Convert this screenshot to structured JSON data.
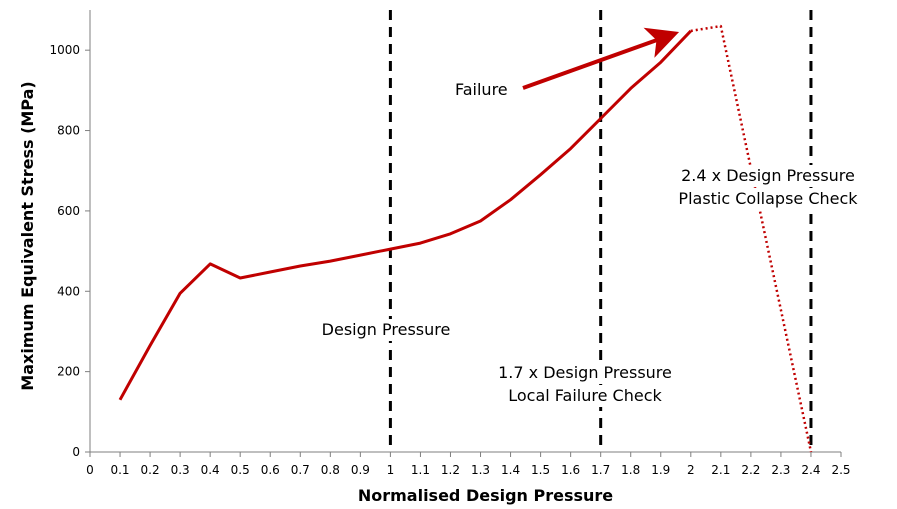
{
  "chart_data": {
    "type": "line",
    "xlabel": "Normalised Design Pressure",
    "ylabel": "Maximum Equivalent Stress (MPa)",
    "xlim": [
      0,
      2.5
    ],
    "ylim": [
      0,
      1100
    ],
    "x_ticks": [
      "0",
      "0.1",
      "0.2",
      "0.3",
      "0.4",
      "0.5",
      "0.6",
      "0.7",
      "0.8",
      "0.9",
      "1",
      "1.1",
      "1.2",
      "1.3",
      "1.4",
      "1.5",
      "1.6",
      "1.7",
      "1.8",
      "1.9",
      "2",
      "2.1",
      "2.2",
      "2.3",
      "2.4",
      "2.5"
    ],
    "y_ticks": [
      "0",
      "200",
      "400",
      "600",
      "800",
      "1000"
    ],
    "grid": false,
    "series": [
      {
        "style": "solid",
        "color": "#c00000",
        "x": [
          0.1,
          0.2,
          0.3,
          0.4,
          0.5,
          0.6,
          0.7,
          0.8,
          0.9,
          1.0,
          1.1,
          1.2,
          1.3,
          1.4,
          1.5,
          1.6,
          1.7,
          1.8,
          1.9,
          2.0
        ],
        "y": [
          130,
          265,
          395,
          468,
          433,
          448,
          463,
          475,
          490,
          505,
          520,
          543,
          575,
          628,
          690,
          755,
          830,
          905,
          970,
          1048
        ]
      },
      {
        "style": "dotted",
        "color": "#c00000",
        "x": [
          2.0,
          2.1,
          2.4
        ],
        "y": [
          1048,
          1060,
          0
        ]
      }
    ],
    "vlines": [
      {
        "x": 1.0,
        "label_lines": [
          "Design Pressure"
        ]
      },
      {
        "x": 1.7,
        "label_lines": [
          "1.7 x Design Pressure",
          "Local Failure Check"
        ]
      },
      {
        "x": 2.4,
        "label_lines": [
          "2.4 x Design Pressure",
          "Plastic Collapse Check"
        ]
      }
    ],
    "annotations": [
      {
        "text": "Failure",
        "arrow_to": [
          1.95,
          1040
        ]
      }
    ]
  }
}
